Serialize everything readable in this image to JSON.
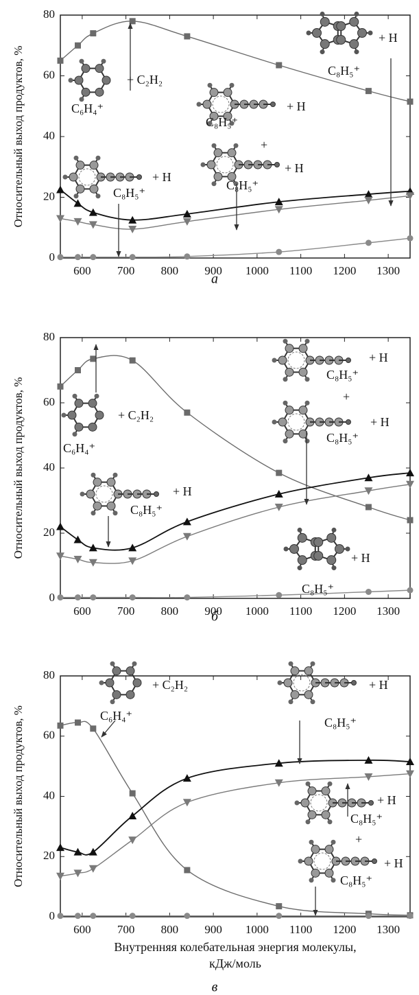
{
  "chart_data": [
    {
      "type": "line",
      "panel_label": "а",
      "ylabel": "Относительный выход продуктов, %",
      "x": [
        550,
        590,
        625,
        715,
        840,
        1050,
        1255,
        1350
      ],
      "xlim": [
        550,
        1350
      ],
      "ylim": [
        0,
        80
      ],
      "xticks": [
        600,
        700,
        800,
        900,
        1000,
        1100,
        1200,
        1300
      ],
      "yticks": [
        0,
        20,
        40,
        60,
        80
      ],
      "series": [
        {
          "marker": "square",
          "color": "#6b6b6b",
          "values": [
            65,
            70,
            74,
            78,
            73,
            63.5,
            55,
            51.5
          ]
        },
        {
          "marker": "triangle-up",
          "color": "#111111",
          "values": [
            22.5,
            18,
            15,
            12.5,
            14.5,
            18.5,
            21,
            22
          ]
        },
        {
          "marker": "triangle-down",
          "color": "#7a7a7a",
          "values": [
            13,
            12,
            11,
            9.5,
            12,
            16,
            19,
            20.5
          ]
        },
        {
          "marker": "circle",
          "color": "#8a8a8a",
          "values": [
            0.3,
            0.3,
            0.3,
            0.3,
            0.5,
            2,
            5,
            6.5
          ]
        }
      ],
      "annotations": [
        "+ C₂H₂",
        "C₆H₄⁺",
        "+ H",
        "C₈H₅⁺",
        "+",
        "+ H",
        "C₈H₅⁺",
        "+ H",
        "C₈H₅⁺",
        "+ H",
        "C₈H₅⁺"
      ]
    },
    {
      "type": "line",
      "panel_label": "б",
      "ylabel": "Относительный выход продуктов, %",
      "x": [
        550,
        590,
        625,
        715,
        840,
        1050,
        1255,
        1350
      ],
      "xlim": [
        550,
        1350
      ],
      "ylim": [
        0,
        80
      ],
      "xticks": [
        600,
        700,
        800,
        900,
        1000,
        1100,
        1200,
        1300
      ],
      "yticks": [
        0,
        20,
        40,
        60,
        80
      ],
      "series": [
        {
          "marker": "square",
          "color": "#6b6b6b",
          "values": [
            65,
            70,
            73.5,
            73,
            57,
            38.5,
            28,
            24
          ]
        },
        {
          "marker": "triangle-up",
          "color": "#111111",
          "values": [
            22,
            18,
            15.5,
            15.5,
            23.5,
            32,
            37,
            38.5
          ]
        },
        {
          "marker": "triangle-down",
          "color": "#7a7a7a",
          "values": [
            13,
            12,
            11,
            11.5,
            19,
            28,
            33,
            35
          ]
        },
        {
          "marker": "circle",
          "color": "#8a8a8a",
          "values": [
            0.3,
            0.3,
            0.3,
            0.3,
            0.3,
            1,
            2,
            2.5
          ]
        }
      ],
      "annotations": [
        "+ C₂H₂",
        "C₆H₄⁺",
        "+ H",
        "C₈H₅⁺",
        "+",
        "+ H",
        "C₈H₅⁺",
        "+ H",
        "C₈H₅⁺",
        "+ H",
        "C₈H₅⁺"
      ]
    },
    {
      "type": "line",
      "panel_label": "в",
      "ylabel": "Относительный выход продуктов, %",
      "xlabel": [
        "Внутренняя колебательная энергия молекулы,",
        "кДж/моль"
      ],
      "x": [
        550,
        590,
        625,
        715,
        840,
        1050,
        1255,
        1350
      ],
      "xlim": [
        550,
        1350
      ],
      "ylim": [
        0,
        80
      ],
      "xticks": [
        600,
        700,
        800,
        900,
        1000,
        1100,
        1200,
        1300
      ],
      "yticks": [
        0,
        20,
        40,
        60,
        80
      ],
      "series": [
        {
          "marker": "square",
          "color": "#6b6b6b",
          "values": [
            63.5,
            64.5,
            62.5,
            41,
            15.5,
            3.5,
            1,
            0.5
          ]
        },
        {
          "marker": "triangle-up",
          "color": "#111111",
          "values": [
            23,
            21.5,
            21.5,
            33.5,
            46,
            51,
            52,
            51.5
          ]
        },
        {
          "marker": "triangle-down",
          "color": "#7a7a7a",
          "values": [
            13.5,
            14.5,
            16,
            25.5,
            38,
            44.5,
            46.5,
            47.5
          ]
        },
        {
          "marker": "circle",
          "color": "#8a8a8a",
          "values": [
            0.3,
            0.3,
            0.3,
            0.3,
            0.3,
            0.3,
            0.3,
            0.3
          ]
        }
      ],
      "annotations": [
        "+ C₂H₂",
        "C₆H₄⁺",
        "+ H",
        "C₈H₅⁺",
        "+ H",
        "C₈H₅⁺",
        "+",
        "+ H",
        "C₈H₅⁺"
      ]
    }
  ]
}
